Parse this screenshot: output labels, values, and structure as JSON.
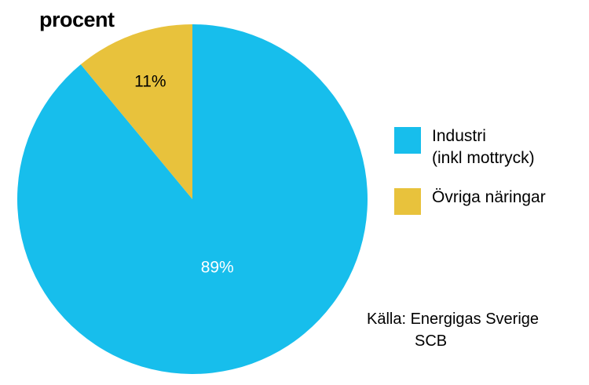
{
  "chart_data": {
    "type": "pie",
    "title": "procent",
    "slices": [
      {
        "label": "Industri (inkl mottryck)",
        "label_lines": [
          "Industri",
          "(inkl mottryck)"
        ],
        "value": 89,
        "value_label": "89%",
        "color": "#17BEEC"
      },
      {
        "label": "Övriga näringar",
        "label_lines": [
          "Övriga näringar"
        ],
        "value": 11,
        "value_label": "11%",
        "color": "#E8C23C"
      }
    ],
    "legend_position": "right",
    "source": [
      "Källa: Energigas Sverige",
      "SCB"
    ]
  }
}
